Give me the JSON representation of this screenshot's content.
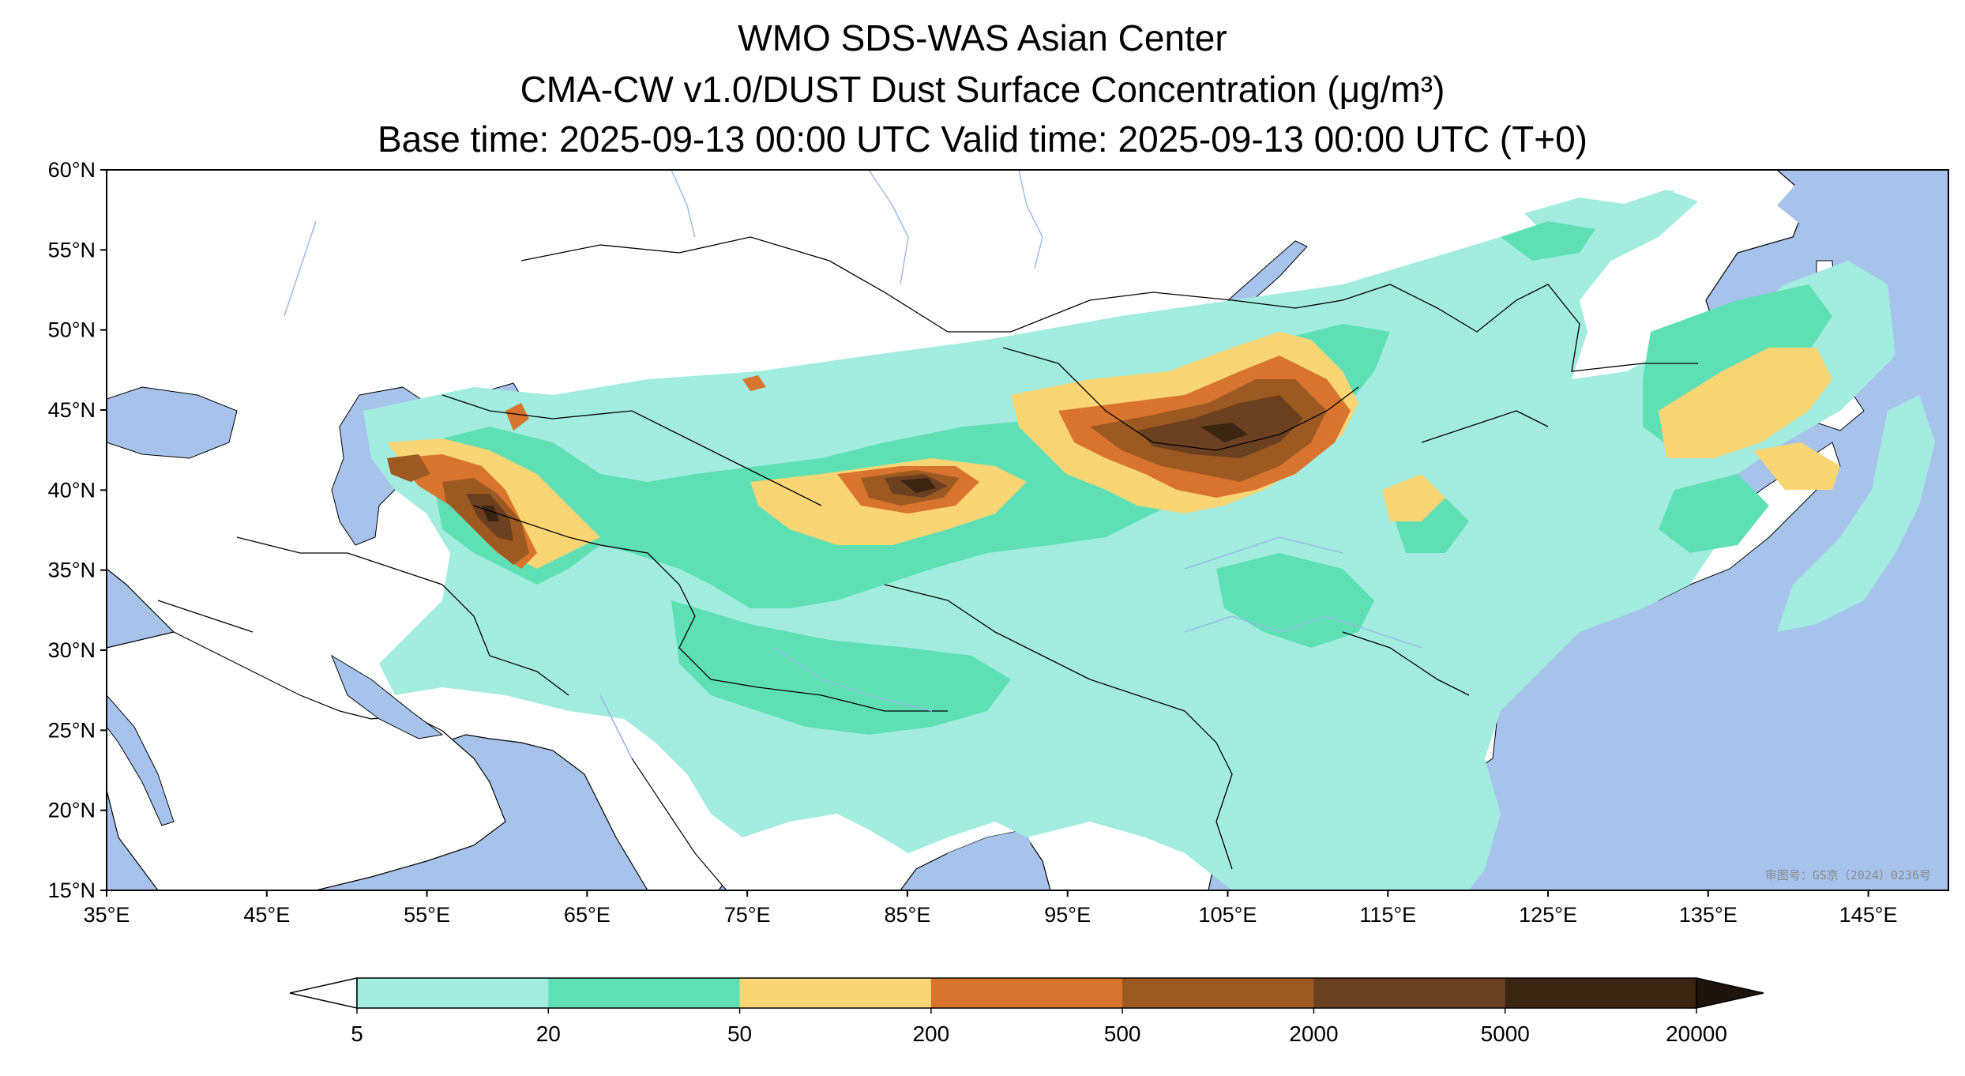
{
  "title": {
    "line1": "WMO SDS-WAS Asian Center",
    "line2": "CMA-CW v1.0/DUST Dust Surface Concentration (μg/m³)",
    "line3": "Base time: 2025-09-13 00:00 UTC Valid time: 2025-09-13 00:00 UTC (T+0)"
  },
  "axes": {
    "lon_labels": [
      "35°E",
      "45°E",
      "55°E",
      "65°E",
      "75°E",
      "85°E",
      "95°E",
      "105°E",
      "115°E",
      "125°E",
      "135°E",
      "145°E"
    ],
    "lat_labels": [
      "60°N",
      "55°N",
      "50°N",
      "45°N",
      "40°N",
      "35°N",
      "30°N",
      "25°N",
      "20°N",
      "15°N"
    ],
    "lon_range": [
      35,
      150
    ],
    "lat_range": [
      15,
      60
    ]
  },
  "colorbar": {
    "tick_labels": [
      "5",
      "20",
      "50",
      "200",
      "500",
      "2000",
      "5000",
      "20000"
    ],
    "colors": [
      "#a2ece0",
      "#5ee0b4",
      "#f9d573",
      "#d9742e",
      "#9c5a22",
      "#6b4020",
      "#3a2412"
    ],
    "extend_min_color": "#ffffff",
    "extend_max_color": "#1e140b"
  },
  "map_colors": {
    "ocean": "#a7c3ec",
    "land": "#ffffff",
    "rivers": "#9ab8e6",
    "borders": "#000000"
  },
  "watermark": "审图号：GS京（2024）0236号"
}
